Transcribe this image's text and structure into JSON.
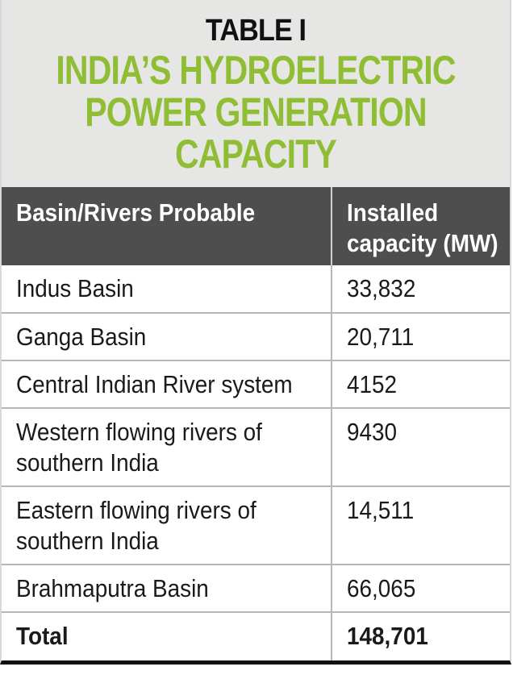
{
  "table": {
    "number": "TABLE I",
    "title_lines": [
      "INDIA’S HYDROELECTRIC",
      "POWER GENERATION",
      "CAPACITY"
    ],
    "headers": {
      "basin": "Basin/Rivers Probable",
      "capacity_line1": "Installed",
      "capacity_line2": "capacity (MW)"
    },
    "rows": [
      {
        "basin_lines": [
          "Indus Basin"
        ],
        "capacity": "33,832"
      },
      {
        "basin_lines": [
          "Ganga Basin"
        ],
        "capacity": "20,711"
      },
      {
        "basin_lines": [
          "Central Indian River system"
        ],
        "capacity": "4152"
      },
      {
        "basin_lines": [
          "Western flowing rivers of",
          "southern India"
        ],
        "capacity": "9430"
      },
      {
        "basin_lines": [
          "Eastern flowing rivers of",
          "southern India"
        ],
        "capacity": "14,511"
      },
      {
        "basin_lines": [
          "Brahmaputra Basin"
        ],
        "capacity": "66,065"
      }
    ],
    "total": {
      "label": "Total",
      "capacity": "148,701"
    }
  },
  "colors": {
    "title_green": "#8fbd33",
    "title_background": "#e6e6e5",
    "header_background": "#4e4e4e"
  }
}
